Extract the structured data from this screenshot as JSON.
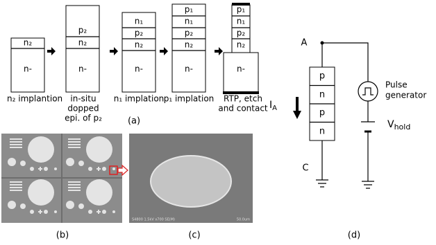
{
  "panel_a": {
    "steps": [
      {
        "layers": [
          "n₂",
          "n-"
        ],
        "caption": [
          "n₂ implantion"
        ]
      },
      {
        "layers": [
          "p₂",
          "n₂",
          "n-"
        ],
        "caption": [
          "in-situ",
          "dopped",
          "epi. of p₂"
        ]
      },
      {
        "layers": [
          "n₁",
          "p₂",
          "n₂",
          "n-"
        ],
        "caption": [
          "n₁ implation"
        ]
      },
      {
        "layers": [
          "p₁",
          "n₁",
          "p₂",
          "n₂",
          "n-"
        ],
        "caption": [
          "p₁ implation"
        ]
      },
      {
        "layers": [
          "p₁",
          "n₁",
          "p₂",
          "n₂",
          "n-"
        ],
        "caption": [
          "RTP, etch",
          "and contact"
        ]
      }
    ],
    "label": "(a)"
  },
  "panel_b": {
    "label": "(b)"
  },
  "panel_c": {
    "label": "(c)",
    "info": "S4800 1.5kV x700 SE(M)",
    "scale": "50.0um"
  },
  "panel_d": {
    "node_a": "A",
    "node_c": "C",
    "layers": [
      "p",
      "n",
      "p",
      "n"
    ],
    "current": {
      "main": "I",
      "sub": "A"
    },
    "source": [
      "Pulse",
      "generator"
    ],
    "voltage": {
      "main": "V",
      "sub": "hold"
    },
    "label": "(d)"
  }
}
